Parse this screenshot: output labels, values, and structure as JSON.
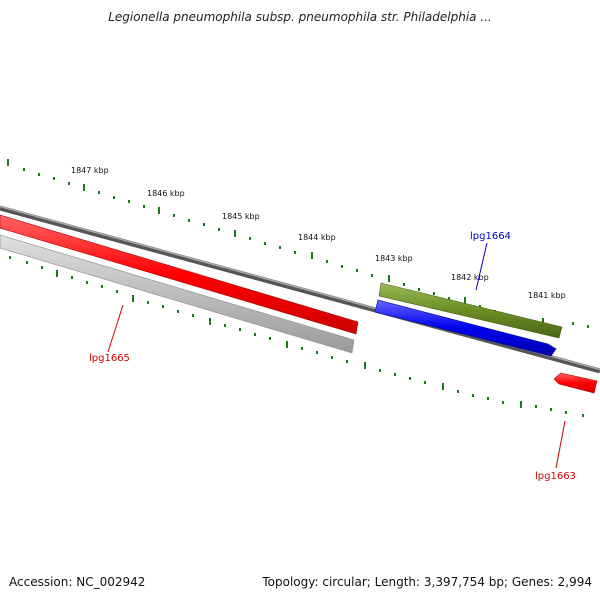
{
  "title": "Legionella pneumophila subsp. pneumophila str. Philadelphia ...",
  "footer": {
    "accession": "Accession: NC_002942",
    "summary": "Topology: circular; Length: 3,397,754 bp; Genes: 2,994"
  },
  "scale_labels": [
    "1847 kbp",
    "1846 kbp",
    "1845 kbp",
    "1844 kbp",
    "1843 kbp",
    "1842 kbp",
    "1841 kbp"
  ],
  "genes": [
    {
      "label": "lpg1665",
      "color": "#cc0000"
    },
    {
      "label": "lpg1664",
      "color": "#0000cc"
    },
    {
      "label": "lpg1663",
      "color": "#cc0000"
    }
  ],
  "colors": {
    "forward_gene": "#ff0000",
    "reverse_gene": "#0000ee",
    "other_gene": "#6b8e23",
    "pseudo_band": "#c0c0c0",
    "backbone": "#777777",
    "tick": "#1a7a1a"
  }
}
